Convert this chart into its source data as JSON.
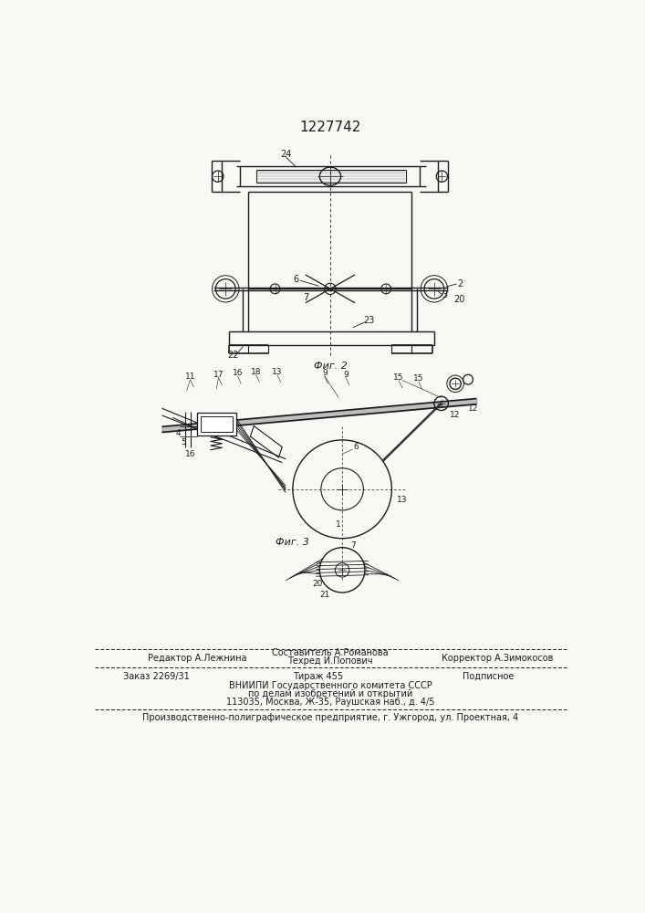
{
  "title": "1227742",
  "bg_color": "#f8f8f5",
  "fig2_label": "Фиг. 2",
  "fig3_label": "Фиг. 3",
  "footer_line1_left": "Редактор А.Лежнина",
  "footer_line1_center_top": "Составитель А.Романова",
  "footer_line1_center_bot": "Техред И.Попович",
  "footer_line1_right": "Корректор А.Зимокосов",
  "footer_line2_left": "Заказ 2269/31",
  "footer_line2_center": "Тираж 455",
  "footer_line2_right": "Подписное",
  "footer_line3": "ВНИИПИ Государственного комитета СССР",
  "footer_line4": "по делам изобретений и открытий",
  "footer_line5": "113035, Москва, Ж-35, Раушская наб., д. 4/5",
  "footer_bottom": "Производственно-полиграфическое предприятие, г. Ужгород, ул. Проектная, 4"
}
